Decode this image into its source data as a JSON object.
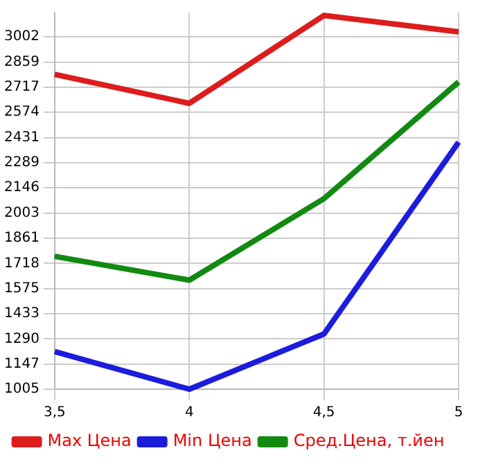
{
  "chart_data": {
    "type": "line",
    "x": [
      3.5,
      4,
      4.5,
      5
    ],
    "series": [
      {
        "name": "Max Цена",
        "color": "#dd1c1c",
        "values": [
          2789,
          2625,
          3123,
          3030
        ]
      },
      {
        "name": "Min Цена",
        "color": "#1c1cdd",
        "values": [
          1218,
          1005,
          1318,
          2405
        ]
      },
      {
        "name": "Сред.Цена, т.йен",
        "color": "#128a12",
        "values": [
          1758,
          1623,
          2085,
          2746
        ]
      }
    ],
    "xlim": [
      3.5,
      5
    ],
    "xticks": [
      {
        "value": 3.5,
        "label": "3,5"
      },
      4,
      {
        "value": 4.5,
        "label": "4,5"
      },
      5
    ],
    "ylim": [
      1005,
      3140
    ],
    "yticks": [
      1005,
      1147,
      1290,
      1433,
      1575,
      1718,
      1861,
      2003,
      2146,
      2289,
      2431,
      2574,
      2717,
      2859,
      3002
    ],
    "grid": true,
    "legend": "bottom",
    "marker": "none",
    "line_style": "solid"
  }
}
